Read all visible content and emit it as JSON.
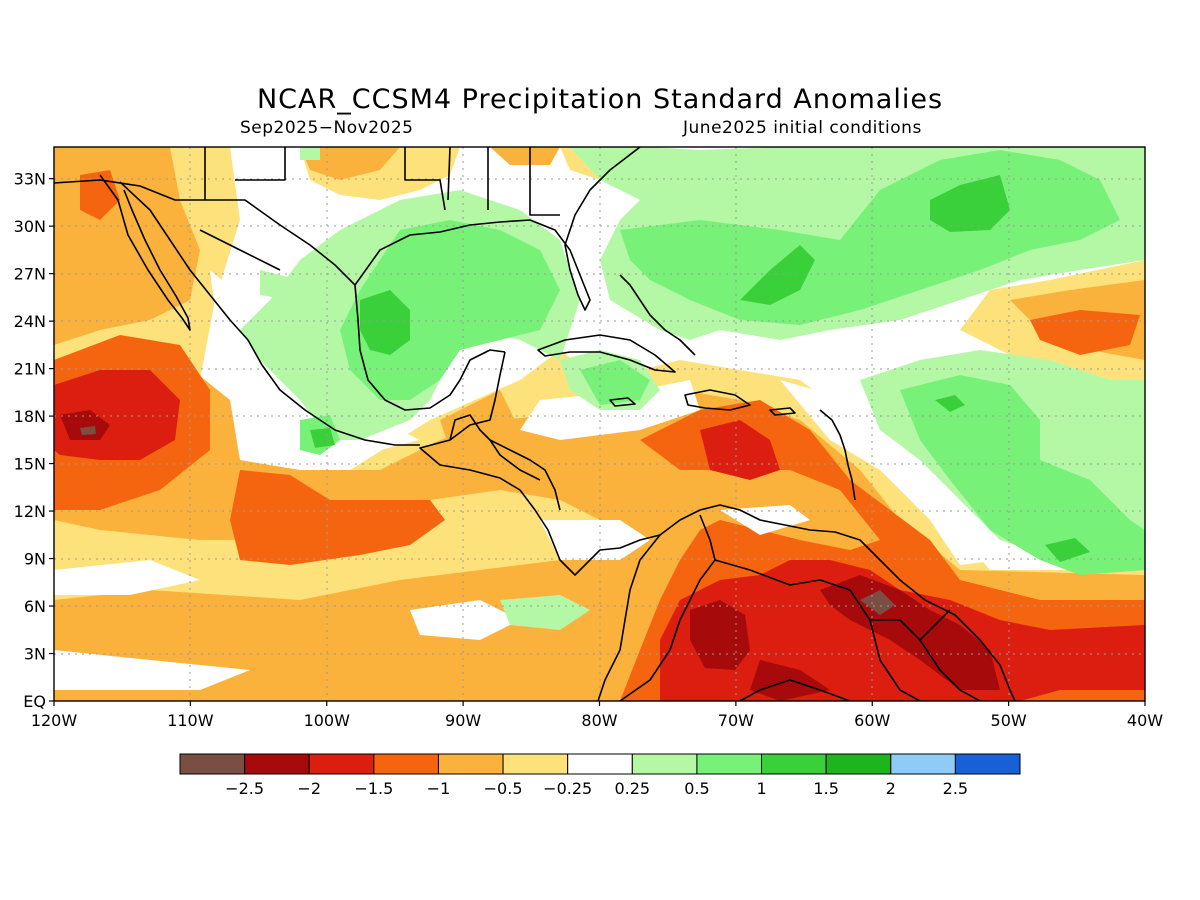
{
  "title": "NCAR_CCSM4 Precipitation Standard Anomalies",
  "subtitle_left": "Sep2025−Nov2025",
  "subtitle_right": "June2025 initial conditions",
  "lat_ticks": [
    {
      "v": 33,
      "label": "33N"
    },
    {
      "v": 30,
      "label": "30N"
    },
    {
      "v": 27,
      "label": "27N"
    },
    {
      "v": 24,
      "label": "24N"
    },
    {
      "v": 21,
      "label": "21N"
    },
    {
      "v": 18,
      "label": "18N"
    },
    {
      "v": 15,
      "label": "15N"
    },
    {
      "v": 12,
      "label": "12N"
    },
    {
      "v": 9,
      "label": "9N"
    },
    {
      "v": 6,
      "label": "6N"
    },
    {
      "v": 3,
      "label": "3N"
    },
    {
      "v": 0,
      "label": "EQ"
    }
  ],
  "lon_ticks": [
    {
      "v": -120,
      "label": "120W"
    },
    {
      "v": -110,
      "label": "110W"
    },
    {
      "v": -100,
      "label": "100W"
    },
    {
      "v": -90,
      "label": "90W"
    },
    {
      "v": -80,
      "label": "80W"
    },
    {
      "v": -70,
      "label": "70W"
    },
    {
      "v": -60,
      "label": "60W"
    },
    {
      "v": -50,
      "label": "50W"
    },
    {
      "v": -40,
      "label": "40W"
    }
  ],
  "colorbar": {
    "colors": [
      "#7a4e43",
      "#a60a0a",
      "#dc1e10",
      "#f5650f",
      "#fbb23c",
      "#fde27b",
      "#ffffff",
      "#b4f8a6",
      "#78f178",
      "#3ad03a",
      "#1db41d",
      "#8fcbf7",
      "#1860d6"
    ],
    "labels": [
      "−2.5",
      "−2",
      "−1.5",
      "−1",
      "−0.5",
      "−0.25",
      "0.25",
      "0.5",
      "1",
      "1.5",
      "2",
      "2.5"
    ]
  },
  "extent": {
    "lon": [
      -120,
      -40
    ],
    "lat": [
      0,
      35
    ]
  }
}
